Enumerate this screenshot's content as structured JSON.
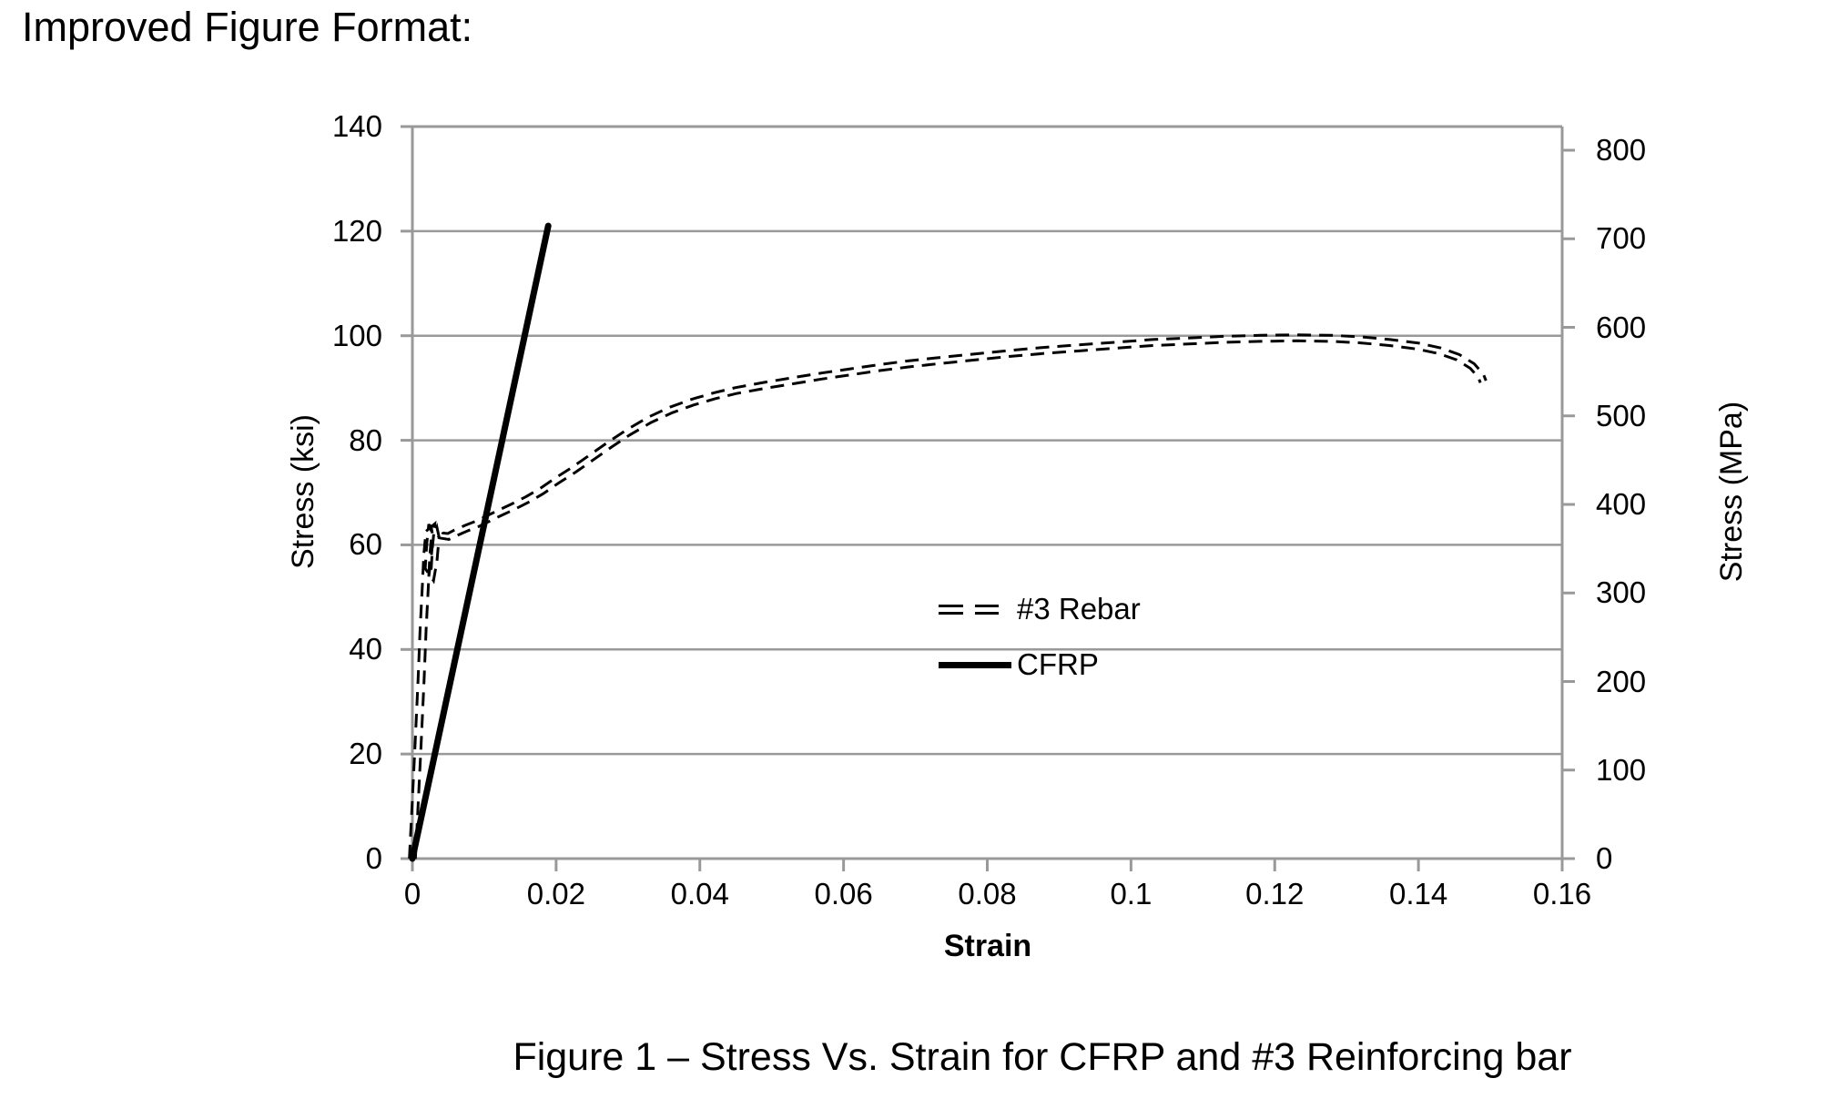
{
  "page": {
    "title": "Improved Figure Format:",
    "caption": "Figure 1 – Stress Vs. Strain for CFRP and #3 Reinforcing bar"
  },
  "colors": {
    "series": "#000000",
    "grid": "#999999",
    "axis": "#999999",
    "text": "#000000"
  },
  "legend": {
    "items": [
      {
        "label": "#3 Rebar",
        "style": "double-dash"
      },
      {
        "label": "CFRP",
        "style": "solid"
      }
    ]
  },
  "chart_data": {
    "type": "line",
    "title": "",
    "grid": "horizontal",
    "legend_position": "inside-right-middle",
    "x_axis": {
      "label": "Strain",
      "min": 0,
      "max": 0.16,
      "ticks": [
        0,
        0.02,
        0.04,
        0.06,
        0.08,
        0.1,
        0.12,
        0.14,
        0.16
      ]
    },
    "left_axis": {
      "label": "Stress (ksi)",
      "min": 0,
      "max": 140,
      "ticks": [
        0,
        20,
        40,
        60,
        80,
        100,
        120,
        140
      ]
    },
    "right_axis": {
      "label": "Stress (MPa)",
      "min": 0,
      "max": 800,
      "ticks": [
        0,
        100,
        200,
        300,
        400,
        500,
        600,
        700,
        800
      ]
    },
    "series": [
      {
        "name": "#3 Rebar",
        "style": "double-dash",
        "points": [
          [
            0,
            0
          ],
          [
            0.0004,
            11
          ],
          [
            0.0008,
            22
          ],
          [
            0.0012,
            34
          ],
          [
            0.0015,
            44
          ],
          [
            0.0018,
            52
          ],
          [
            0.002,
            58
          ],
          [
            0.0023,
            62.5
          ],
          [
            0.0027,
            64
          ],
          [
            0.0024,
            60
          ],
          [
            0.0022,
            55.5
          ],
          [
            0.0026,
            53.5
          ],
          [
            0.003,
            57
          ],
          [
            0.0033,
            61.5
          ],
          [
            0.003,
            63.5
          ],
          [
            0.0035,
            63
          ],
          [
            0.004,
            61.8
          ],
          [
            0.005,
            61.6
          ],
          [
            0.006,
            62.3
          ],
          [
            0.0075,
            63.2
          ],
          [
            0.009,
            64
          ],
          [
            0.0105,
            65
          ],
          [
            0.012,
            66
          ],
          [
            0.014,
            67.3
          ],
          [
            0.016,
            68.7
          ],
          [
            0.018,
            70.3
          ],
          [
            0.02,
            72.2
          ],
          [
            0.0225,
            74.4
          ],
          [
            0.025,
            76.8
          ],
          [
            0.0275,
            79.2
          ],
          [
            0.03,
            81.5
          ],
          [
            0.033,
            83.9
          ],
          [
            0.036,
            85.8
          ],
          [
            0.039,
            87.3
          ],
          [
            0.042,
            88.5
          ],
          [
            0.045,
            89.5
          ],
          [
            0.049,
            90.5
          ],
          [
            0.053,
            91.4
          ],
          [
            0.057,
            92.3
          ],
          [
            0.061,
            93.1
          ],
          [
            0.065,
            93.9
          ],
          [
            0.069,
            94.6
          ],
          [
            0.073,
            95.2
          ],
          [
            0.078,
            95.9
          ],
          [
            0.083,
            96.6
          ],
          [
            0.088,
            97.2
          ],
          [
            0.093,
            97.7
          ],
          [
            0.098,
            98.2
          ],
          [
            0.103,
            98.7
          ],
          [
            0.108,
            99
          ],
          [
            0.113,
            99.3
          ],
          [
            0.118,
            99.5
          ],
          [
            0.123,
            99.6
          ],
          [
            0.128,
            99.5
          ],
          [
            0.132,
            99.2
          ],
          [
            0.136,
            98.7
          ],
          [
            0.14,
            98
          ],
          [
            0.143,
            97.1
          ],
          [
            0.1455,
            95.9
          ],
          [
            0.1475,
            94.2
          ],
          [
            0.1487,
            92.3
          ],
          [
            0.149,
            91.2
          ]
        ]
      },
      {
        "name": "CFRP",
        "style": "solid",
        "points": [
          [
            0,
            0
          ],
          [
            0.0189,
            121
          ]
        ]
      }
    ]
  }
}
